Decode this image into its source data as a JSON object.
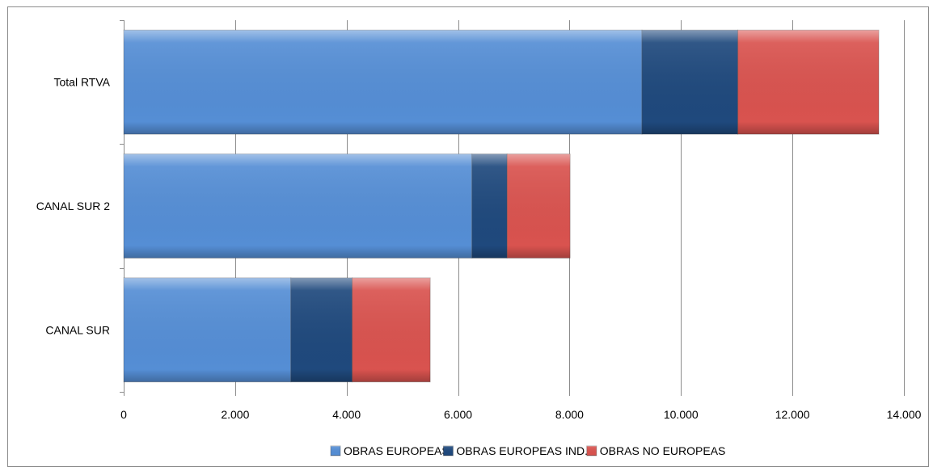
{
  "chart_data": {
    "type": "bar",
    "orientation": "horizontal",
    "stacked": true,
    "categories": [
      "CANAL SUR",
      "CANAL SUR 2",
      "Total RTVA"
    ],
    "series": [
      {
        "name": "OBRAS EUROPEAS",
        "values": [
          3000,
          6250,
          9300
        ],
        "color": "#558ed5"
      },
      {
        "name": "OBRAS EUROPEAS IND.",
        "values": [
          1100,
          630,
          1720
        ],
        "color": "#1f497d"
      },
      {
        "name": "OBRAS NO EUROPEAS",
        "values": [
          1400,
          1130,
          2530
        ],
        "color": "#d9534f"
      }
    ],
    "xlim": [
      0,
      14000
    ],
    "xticks": [
      0,
      2000,
      4000,
      6000,
      8000,
      10000,
      12000,
      14000
    ],
    "xtick_labels": [
      "0",
      "2.000",
      "4.000",
      "6.000",
      "8.000",
      "10.000",
      "12.000",
      "14.000"
    ],
    "grid": true,
    "legend_position": "bottom",
    "title": "",
    "xlabel": "",
    "ylabel": ""
  }
}
